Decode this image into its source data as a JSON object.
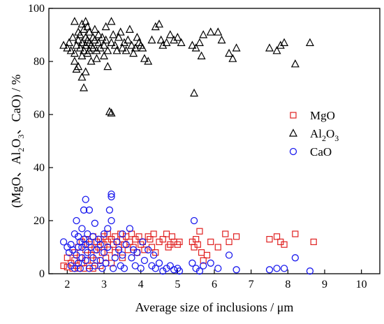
{
  "chart_data": {
    "type": "scatter",
    "xlabel": "Average size of inclusions  / μm",
    "ylabel_parts": {
      "a": "(MgO、Al",
      "sub1": "2",
      "b": "O",
      "sub2": "3",
      "c": "、CaO) / %"
    },
    "xlim": [
      1.5,
      10.5
    ],
    "ylim": [
      0,
      100
    ],
    "x_ticks": [
      2,
      3,
      4,
      5,
      6,
      7,
      8,
      9,
      10
    ],
    "y_ticks": [
      0,
      20,
      40,
      60,
      80,
      100
    ],
    "grid": false,
    "legend_position": "right-center",
    "series": [
      {
        "name": "MgO",
        "legend": {
          "main": "MgO"
        },
        "marker": "square",
        "color": "#e02020",
        "points": [
          [
            1.9,
            3
          ],
          [
            2.0,
            2.5
          ],
          [
            2.0,
            6
          ],
          [
            2.1,
            4
          ],
          [
            2.15,
            2
          ],
          [
            2.2,
            5
          ],
          [
            2.2,
            8
          ],
          [
            2.25,
            3
          ],
          [
            2.3,
            10
          ],
          [
            2.3,
            2
          ],
          [
            2.35,
            6
          ],
          [
            2.4,
            12
          ],
          [
            2.4,
            4
          ],
          [
            2.45,
            2
          ],
          [
            2.5,
            9
          ],
          [
            2.5,
            13
          ],
          [
            2.55,
            5
          ],
          [
            2.6,
            11
          ],
          [
            2.6,
            3
          ],
          [
            2.65,
            7
          ],
          [
            2.7,
            14
          ],
          [
            2.7,
            2
          ],
          [
            2.75,
            9
          ],
          [
            2.8,
            12
          ],
          [
            2.8,
            5
          ],
          [
            2.85,
            10
          ],
          [
            2.9,
            13
          ],
          [
            2.9,
            3
          ],
          [
            2.95,
            8
          ],
          [
            3.0,
            14
          ],
          [
            3.0,
            11
          ],
          [
            3.05,
            6
          ],
          [
            3.1,
            12
          ],
          [
            3.1,
            15
          ],
          [
            3.15,
            9
          ],
          [
            3.2,
            13
          ],
          [
            3.2,
            4
          ],
          [
            3.25,
            11
          ],
          [
            3.3,
            14
          ],
          [
            3.3,
            8
          ],
          [
            3.35,
            12
          ],
          [
            3.4,
            10
          ],
          [
            3.45,
            15
          ],
          [
            3.5,
            13
          ],
          [
            3.5,
            6
          ],
          [
            3.55,
            11
          ],
          [
            3.6,
            14
          ],
          [
            3.65,
            9
          ],
          [
            3.7,
            12
          ],
          [
            3.75,
            15
          ],
          [
            3.8,
            10
          ],
          [
            3.85,
            13
          ],
          [
            3.9,
            8
          ],
          [
            3.95,
            14
          ],
          [
            4.0,
            11
          ],
          [
            4.05,
            12
          ],
          [
            4.1,
            9
          ],
          [
            4.2,
            14
          ],
          [
            4.25,
            13
          ],
          [
            4.3,
            10
          ],
          [
            4.35,
            15
          ],
          [
            4.4,
            8
          ],
          [
            4.5,
            12
          ],
          [
            4.6,
            13
          ],
          [
            4.7,
            15
          ],
          [
            4.75,
            10
          ],
          [
            4.8,
            11
          ],
          [
            4.85,
            14
          ],
          [
            4.9,
            12
          ],
          [
            5.0,
            11
          ],
          [
            5.05,
            12
          ],
          [
            5.4,
            12
          ],
          [
            5.45,
            10
          ],
          [
            5.5,
            13
          ],
          [
            5.55,
            11
          ],
          [
            5.6,
            16
          ],
          [
            5.65,
            8
          ],
          [
            5.7,
            5
          ],
          [
            5.8,
            7
          ],
          [
            5.9,
            12
          ],
          [
            6.1,
            10
          ],
          [
            6.3,
            15
          ],
          [
            6.4,
            12
          ],
          [
            6.6,
            14
          ],
          [
            7.5,
            13
          ],
          [
            7.7,
            14
          ],
          [
            7.8,
            12
          ],
          [
            7.9,
            11
          ],
          [
            8.2,
            15
          ],
          [
            8.7,
            12
          ]
        ]
      },
      {
        "name": "Al2O3",
        "legend": {
          "main": "Al",
          "sub1": "2",
          "mid": "O",
          "sub2": "3"
        },
        "marker": "triangle",
        "color": "#000000",
        "points": [
          [
            1.9,
            86
          ],
          [
            2.0,
            85
          ],
          [
            2.05,
            87
          ],
          [
            2.1,
            84
          ],
          [
            2.15,
            89
          ],
          [
            2.2,
            95
          ],
          [
            2.2,
            83
          ],
          [
            2.2,
            80
          ],
          [
            2.25,
            77
          ],
          [
            2.25,
            86
          ],
          [
            2.3,
            91
          ],
          [
            2.3,
            88
          ],
          [
            2.3,
            78
          ],
          [
            2.35,
            85
          ],
          [
            2.35,
            90
          ],
          [
            2.4,
            94
          ],
          [
            2.4,
            87
          ],
          [
            2.4,
            82
          ],
          [
            2.4,
            74
          ],
          [
            2.45,
            70
          ],
          [
            2.45,
            92
          ],
          [
            2.45,
            84
          ],
          [
            2.5,
            95
          ],
          [
            2.5,
            89
          ],
          [
            2.5,
            86
          ],
          [
            2.5,
            76
          ],
          [
            2.55,
            88
          ],
          [
            2.55,
            93
          ],
          [
            2.55,
            83
          ],
          [
            2.6,
            87
          ],
          [
            2.6,
            91
          ],
          [
            2.6,
            84
          ],
          [
            2.65,
            80
          ],
          [
            2.65,
            86
          ],
          [
            2.7,
            89
          ],
          [
            2.7,
            85
          ],
          [
            2.75,
            92
          ],
          [
            2.75,
            88
          ],
          [
            2.8,
            84
          ],
          [
            2.8,
            81
          ],
          [
            2.85,
            90
          ],
          [
            2.85,
            87
          ],
          [
            2.9,
            85
          ],
          [
            2.95,
            89
          ],
          [
            3.0,
            86
          ],
          [
            3.0,
            82
          ],
          [
            3.05,
            93
          ],
          [
            3.05,
            88
          ],
          [
            3.1,
            84
          ],
          [
            3.1,
            78
          ],
          [
            3.15,
            61
          ],
          [
            3.2,
            60.5
          ],
          [
            3.2,
            87
          ],
          [
            3.2,
            95
          ],
          [
            3.25,
            90
          ],
          [
            3.3,
            86
          ],
          [
            3.35,
            84
          ],
          [
            3.4,
            89
          ],
          [
            3.45,
            91
          ],
          [
            3.5,
            85
          ],
          [
            3.55,
            87
          ],
          [
            3.6,
            84
          ],
          [
            3.65,
            88
          ],
          [
            3.7,
            92
          ],
          [
            3.75,
            86
          ],
          [
            3.8,
            83
          ],
          [
            3.85,
            85
          ],
          [
            3.9,
            89
          ],
          [
            3.95,
            87
          ],
          [
            4.0,
            86
          ],
          [
            4.05,
            85
          ],
          [
            4.1,
            81
          ],
          [
            4.2,
            80
          ],
          [
            4.3,
            88
          ],
          [
            4.4,
            93
          ],
          [
            4.5,
            94
          ],
          [
            4.55,
            88
          ],
          [
            4.6,
            86
          ],
          [
            4.7,
            87
          ],
          [
            4.8,
            90
          ],
          [
            4.9,
            88
          ],
          [
            5.0,
            89
          ],
          [
            5.1,
            87
          ],
          [
            5.4,
            86
          ],
          [
            5.45,
            68
          ],
          [
            5.5,
            85
          ],
          [
            5.6,
            87
          ],
          [
            5.65,
            82
          ],
          [
            5.7,
            90
          ],
          [
            5.9,
            91
          ],
          [
            6.1,
            91
          ],
          [
            6.2,
            88
          ],
          [
            6.4,
            83
          ],
          [
            6.5,
            81
          ],
          [
            6.6,
            85
          ],
          [
            7.5,
            85
          ],
          [
            7.7,
            84
          ],
          [
            7.8,
            86
          ],
          [
            7.9,
            87
          ],
          [
            8.2,
            79
          ],
          [
            8.6,
            87
          ]
        ]
      },
      {
        "name": "CaO",
        "legend": {
          "main": "CaO"
        },
        "marker": "circle",
        "color": "#1a1aee",
        "points": [
          [
            1.9,
            12
          ],
          [
            2.0,
            10
          ],
          [
            2.05,
            8
          ],
          [
            2.1,
            3
          ],
          [
            2.1,
            11
          ],
          [
            2.15,
            9
          ],
          [
            2.2,
            15
          ],
          [
            2.2,
            2
          ],
          [
            2.25,
            20
          ],
          [
            2.25,
            7
          ],
          [
            2.3,
            14
          ],
          [
            2.3,
            4
          ],
          [
            2.3,
            10
          ],
          [
            2.35,
            12
          ],
          [
            2.35,
            2
          ],
          [
            2.4,
            17
          ],
          [
            2.4,
            6
          ],
          [
            2.4,
            10
          ],
          [
            2.45,
            13
          ],
          [
            2.45,
            24
          ],
          [
            2.5,
            28
          ],
          [
            2.5,
            11
          ],
          [
            2.5,
            5
          ],
          [
            2.55,
            15
          ],
          [
            2.55,
            8
          ],
          [
            2.6,
            24
          ],
          [
            2.6,
            2
          ],
          [
            2.6,
            12
          ],
          [
            2.65,
            10
          ],
          [
            2.7,
            6
          ],
          [
            2.7,
            14
          ],
          [
            2.75,
            19
          ],
          [
            2.75,
            3
          ],
          [
            2.8,
            9
          ],
          [
            2.85,
            13
          ],
          [
            2.9,
            5
          ],
          [
            2.9,
            11
          ],
          [
            2.95,
            2
          ],
          [
            3.0,
            8
          ],
          [
            3.0,
            15
          ],
          [
            3.05,
            4
          ],
          [
            3.1,
            17
          ],
          [
            3.1,
            10
          ],
          [
            3.15,
            24
          ],
          [
            3.2,
            30
          ],
          [
            3.2,
            29
          ],
          [
            3.2,
            20
          ],
          [
            3.25,
            2
          ],
          [
            3.3,
            6
          ],
          [
            3.35,
            12
          ],
          [
            3.4,
            9
          ],
          [
            3.45,
            3
          ],
          [
            3.5,
            15
          ],
          [
            3.5,
            7
          ],
          [
            3.55,
            2
          ],
          [
            3.6,
            11
          ],
          [
            3.7,
            17
          ],
          [
            3.75,
            6
          ],
          [
            3.8,
            9
          ],
          [
            3.85,
            3
          ],
          [
            3.9,
            8
          ],
          [
            4.0,
            2
          ],
          [
            4.05,
            12
          ],
          [
            4.1,
            5
          ],
          [
            4.2,
            9
          ],
          [
            4.3,
            3
          ],
          [
            4.35,
            7
          ],
          [
            4.4,
            2
          ],
          [
            4.5,
            4
          ],
          [
            4.6,
            1
          ],
          [
            4.7,
            2
          ],
          [
            4.8,
            3
          ],
          [
            4.9,
            1.5
          ],
          [
            5.0,
            2
          ],
          [
            5.05,
            1
          ],
          [
            5.4,
            4
          ],
          [
            5.45,
            20
          ],
          [
            5.5,
            2
          ],
          [
            5.6,
            1
          ],
          [
            5.7,
            3
          ],
          [
            5.9,
            4
          ],
          [
            6.1,
            2
          ],
          [
            6.4,
            7
          ],
          [
            6.6,
            1.5
          ],
          [
            7.5,
            1.5
          ],
          [
            7.7,
            2
          ],
          [
            7.9,
            2
          ],
          [
            8.2,
            6
          ],
          [
            8.6,
            1
          ]
        ]
      }
    ]
  }
}
